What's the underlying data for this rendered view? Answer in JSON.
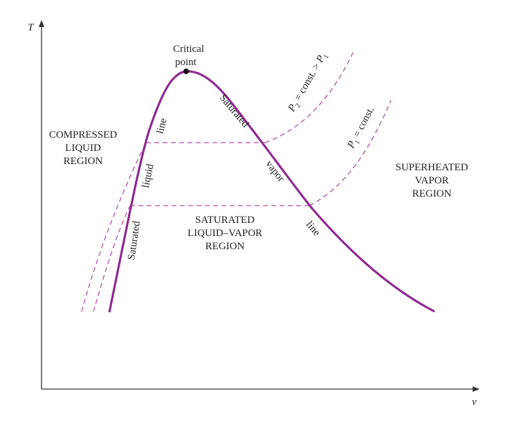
{
  "axes": {
    "x_label": "v",
    "y_label": "T"
  },
  "critical_point": [
    "Critical",
    "point"
  ],
  "regions": {
    "compressed": [
      "COMPRESSED",
      "LIQUID",
      "REGION"
    ],
    "saturated": [
      "SATURATED",
      "LIQUID–VAPOR",
      "REGION"
    ],
    "superheated": [
      "SUPERHEATED",
      "VAPOR",
      "REGION"
    ]
  },
  "dome_labels": {
    "sat_liquid": [
      "Saturated",
      "liquid",
      "line"
    ],
    "sat_vapor": [
      "Saturated",
      "vapor",
      "line"
    ]
  },
  "isobars": {
    "p2": {
      "P": "P",
      "sub": "2",
      "mid": " = const. > ",
      "P2": "P",
      "sub2": "1"
    },
    "p1": {
      "P": "P",
      "sub": "1",
      "mid": " = const."
    }
  },
  "colors": {
    "curve": "#8e2a8e",
    "dashed": "#b04ab0",
    "axis": "#333333",
    "text": "#222222"
  }
}
